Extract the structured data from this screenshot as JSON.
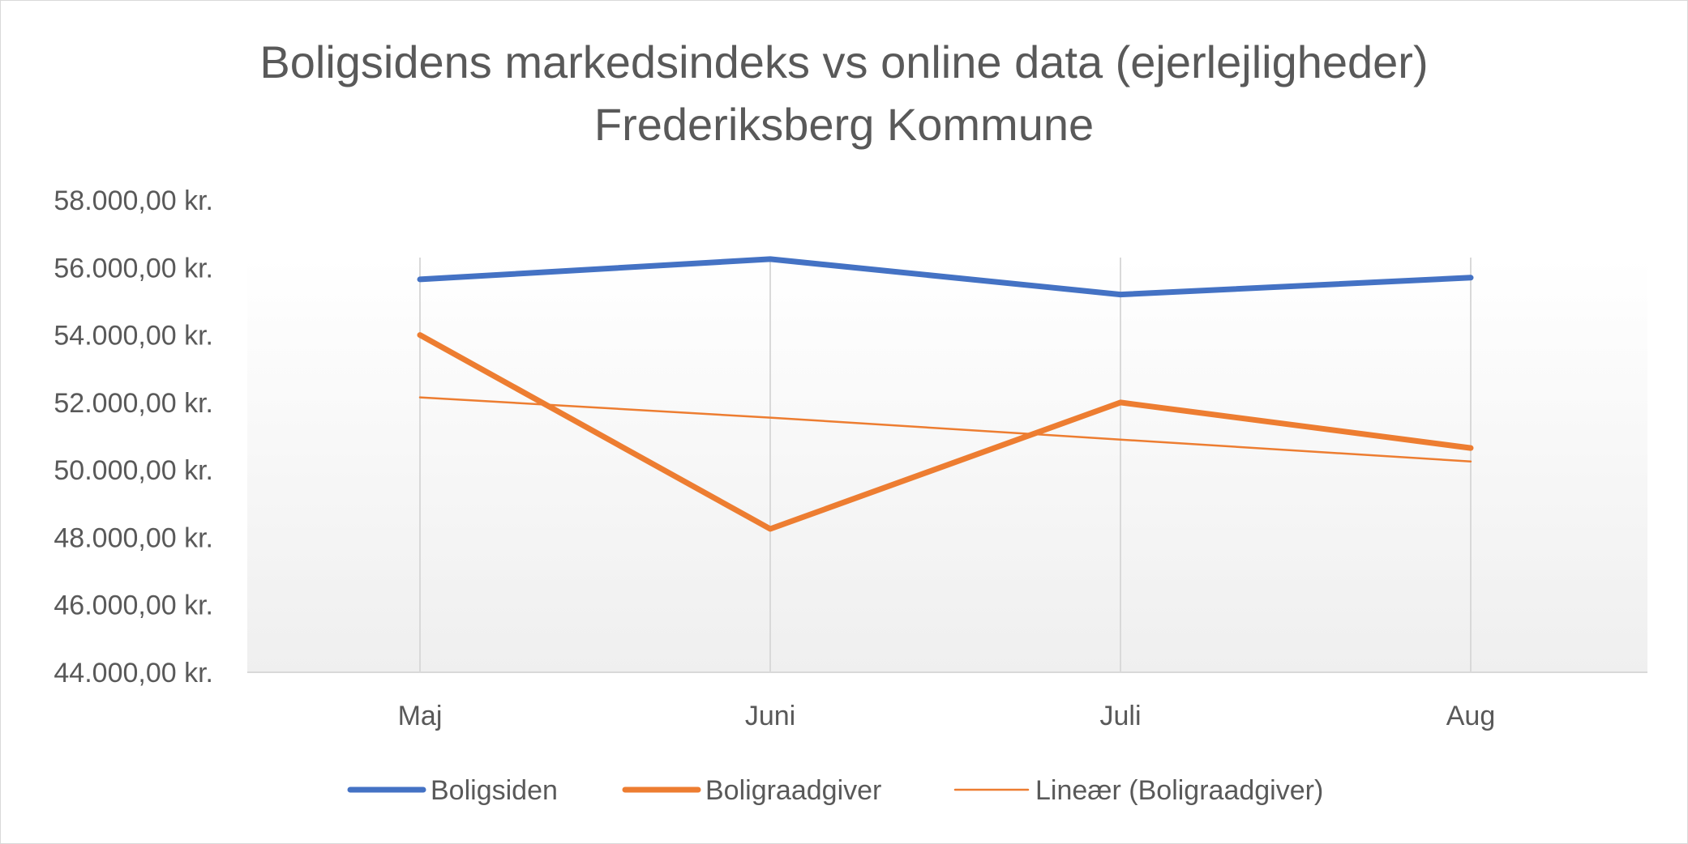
{
  "chart_data": {
    "type": "line",
    "title": "Boligsidens markedsindeks vs online data (ejerlejligheder)",
    "subtitle": "Frederiksberg Kommune",
    "categories": [
      "Maj",
      "Juni",
      "Juli",
      "Aug"
    ],
    "y_tick_labels": [
      "58.000,00 kr.",
      "56.000,00 kr.",
      "54.000,00 kr.",
      "52.000,00 kr.",
      "50.000,00 kr.",
      "48.000,00 kr.",
      "46.000,00 kr.",
      "44.000,00 kr."
    ],
    "ylim": [
      44000,
      58000
    ],
    "grid": "vertical",
    "legend_position": "bottom",
    "series": [
      {
        "name": "Boligsiden",
        "values": [
          55650,
          56250,
          55200,
          55700
        ],
        "color": "#4472c4",
        "style": "thick"
      },
      {
        "name": "Boligraadgiver",
        "values": [
          54000,
          48250,
          52000,
          50650
        ],
        "color": "#ed7d31",
        "style": "thick"
      },
      {
        "name": "Lineær (Boligraadgiver)",
        "values": [
          52150,
          51550,
          50900,
          50250
        ],
        "color": "#ed7d31",
        "style": "thin"
      }
    ]
  }
}
